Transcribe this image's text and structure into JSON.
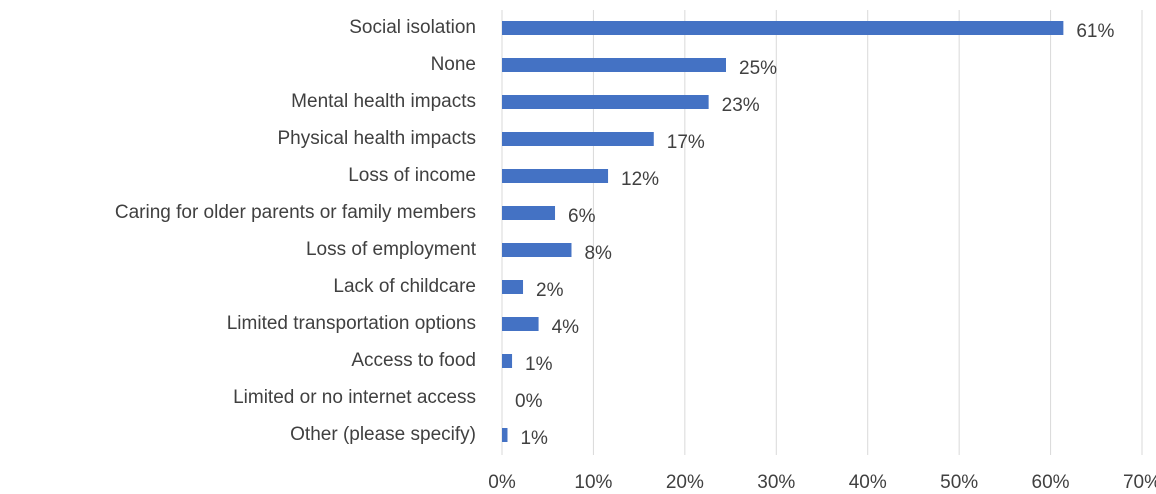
{
  "chart_data": {
    "type": "bar",
    "orientation": "horizontal",
    "categories": [
      "Social isolation",
      "None",
      "Mental health impacts",
      "Physical health impacts",
      "Loss of income",
      "Caring for older parents or family members",
      "Loss of employment",
      "Lack of childcare",
      "Limited transportation options",
      "Access to food",
      "Limited or no internet access",
      "Other (please specify)"
    ],
    "values": [
      61.4,
      24.5,
      22.6,
      16.6,
      11.6,
      5.8,
      7.6,
      2.3,
      4.0,
      1.1,
      0,
      0.6
    ],
    "value_labels": [
      "61%",
      "25%",
      "23%",
      "17%",
      "12%",
      "6%",
      "8%",
      "2%",
      "4%",
      "1%",
      "0%",
      "1%"
    ],
    "color": "#4472c4",
    "xlim": [
      0,
      70
    ],
    "xticks": [
      {
        "value": 0,
        "label": "0%"
      },
      {
        "value": 10,
        "label": "10%"
      },
      {
        "value": 20,
        "label": "20%"
      },
      {
        "value": 30,
        "label": "30%"
      },
      {
        "value": 40,
        "label": "40%"
      },
      {
        "value": 50,
        "label": "50%"
      },
      {
        "value": 60,
        "label": "60%"
      },
      {
        "value": 70,
        "label": "70%"
      }
    ],
    "grid": true
  }
}
